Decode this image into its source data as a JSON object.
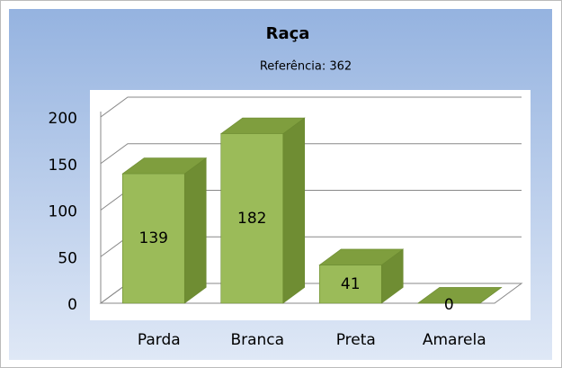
{
  "chart_data": {
    "type": "bar",
    "title": "Raça",
    "subtitle": "Referência: 362",
    "categories": [
      "Parda",
      "Branca",
      "Preta",
      "Amarela"
    ],
    "values": [
      139,
      182,
      41,
      0
    ],
    "color": "#9bbb59",
    "ylim": [
      0,
      200
    ],
    "yticks": [
      0,
      50,
      100,
      150,
      200
    ],
    "grid": true
  }
}
